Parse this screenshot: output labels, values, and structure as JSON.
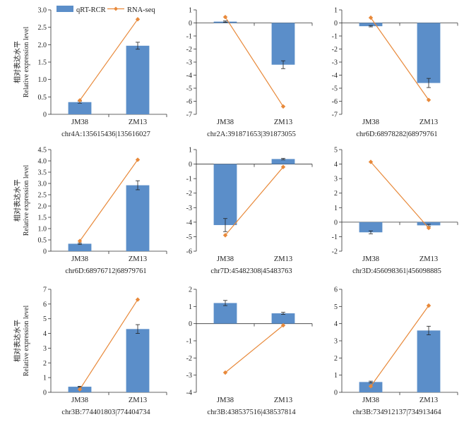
{
  "legend": {
    "bar_label": "qRT-RCR",
    "line_label": "RNA-seq"
  },
  "ylabel": {
    "cn": "相对表达水平",
    "en": "Relative expression level"
  },
  "colors": {
    "bar": "#5b8ec9",
    "line": "#e8893a",
    "marker": "#e8893a",
    "axis": "#333333"
  },
  "chart_data": [
    {
      "type": "bar",
      "title": "chr4A:135615436|135616027",
      "categories": [
        "JM38",
        "ZM13"
      ],
      "ylim": [
        0,
        3
      ],
      "yticks": [
        "0",
        "0.5",
        "1.0",
        "1.5",
        "2.0",
        "2.5",
        "3.0"
      ],
      "ytick_values": [
        0,
        0.5,
        1,
        1.5,
        2,
        2.5,
        3
      ],
      "series": [
        {
          "name": "qRT-RCR",
          "type": "bar",
          "values": [
            0.35,
            1.97
          ],
          "errors": [
            0.03,
            0.1
          ]
        },
        {
          "name": "RNA-seq",
          "type": "line",
          "values": [
            0.4,
            2.73
          ]
        }
      ]
    },
    {
      "type": "bar",
      "title": "chr2A:391871653|391873055",
      "categories": [
        "JM38",
        "ZM13"
      ],
      "ylim": [
        -7,
        1
      ],
      "yticks": [
        "1",
        "0",
        "-1",
        "-2",
        "-3",
        "-4",
        "-5",
        "-6",
        "-7"
      ],
      "ytick_values": [
        1,
        0,
        -1,
        -2,
        -3,
        -4,
        -5,
        -6,
        -7
      ],
      "series": [
        {
          "name": "qRT-RCR",
          "type": "bar",
          "values": [
            0.1,
            -3.2
          ],
          "errors": [
            0.05,
            0.3
          ]
        },
        {
          "name": "RNA-seq",
          "type": "line",
          "values": [
            0.45,
            -6.4
          ]
        }
      ]
    },
    {
      "type": "bar",
      "title": "chr6D:68978282|68979761",
      "categories": [
        "JM38",
        "ZM13"
      ],
      "ylim": [
        -7,
        1
      ],
      "yticks": [
        "1",
        "0",
        "-1",
        "-2",
        "-3",
        "-4",
        "-5",
        "-6",
        "-7"
      ],
      "ytick_values": [
        1,
        0,
        -1,
        -2,
        -3,
        -4,
        -5,
        -6,
        -7
      ],
      "series": [
        {
          "name": "qRT-RCR",
          "type": "bar",
          "values": [
            -0.25,
            -4.6
          ],
          "errors": [
            0.05,
            0.35
          ]
        },
        {
          "name": "RNA-seq",
          "type": "line",
          "values": [
            0.4,
            -5.9
          ]
        }
      ]
    },
    {
      "type": "bar",
      "title": "chr6D:68976712|68979761",
      "categories": [
        "JM38",
        "ZM13"
      ],
      "ylim": [
        0,
        4.5
      ],
      "yticks": [
        "0",
        "0.5",
        "1.0",
        "1.5",
        "2.0",
        "2.5",
        "3.0",
        "3.5",
        "4.0",
        "4.5"
      ],
      "ytick_values": [
        0,
        0.5,
        1,
        1.5,
        2,
        2.5,
        3,
        3.5,
        4,
        4.5
      ],
      "series": [
        {
          "name": "qRT-RCR",
          "type": "bar",
          "values": [
            0.33,
            2.92
          ],
          "errors": [
            0.03,
            0.2
          ]
        },
        {
          "name": "RNA-seq",
          "type": "line",
          "values": [
            0.45,
            4.05
          ]
        }
      ]
    },
    {
      "type": "bar",
      "title": "chr7D:45482308|45483763",
      "categories": [
        "JM38",
        "ZM13"
      ],
      "ylim": [
        -6,
        1
      ],
      "yticks": [
        "1",
        "0",
        "-1",
        "-2",
        "-3",
        "-4",
        "-5",
        "-6"
      ],
      "ytick_values": [
        1,
        0,
        -1,
        -2,
        -3,
        -4,
        -5,
        -6
      ],
      "series": [
        {
          "name": "qRT-RCR",
          "type": "bar",
          "values": [
            -4.2,
            0.35
          ],
          "errors": [
            0.45,
            0.05
          ]
        },
        {
          "name": "RNA-seq",
          "type": "line",
          "values": [
            -4.9,
            -0.2
          ]
        }
      ]
    },
    {
      "type": "bar",
      "title": "chr3D:456098361|456098885",
      "categories": [
        "JM38",
        "ZM13"
      ],
      "ylim": [
        -2,
        5
      ],
      "yticks": [
        "5",
        "4",
        "3",
        "2",
        "1",
        "0",
        "-1",
        "-2"
      ],
      "ytick_values": [
        5,
        4,
        3,
        2,
        1,
        0,
        -1,
        -2
      ],
      "series": [
        {
          "name": "qRT-RCR",
          "type": "bar",
          "values": [
            -0.7,
            -0.22
          ],
          "errors": [
            0.1,
            0.07
          ]
        },
        {
          "name": "RNA-seq",
          "type": "line",
          "values": [
            4.15,
            -0.4
          ]
        }
      ]
    },
    {
      "type": "bar",
      "title": "chr3B:774401803|774404734",
      "categories": [
        "JM38",
        "ZM13"
      ],
      "ylim": [
        0,
        7
      ],
      "yticks": [
        "0",
        "1",
        "2",
        "3",
        "4",
        "5",
        "6",
        "7"
      ],
      "ytick_values": [
        0,
        1,
        2,
        3,
        4,
        5,
        6,
        7
      ],
      "series": [
        {
          "name": "qRT-RCR",
          "type": "bar",
          "values": [
            0.38,
            4.3
          ],
          "errors": [
            0.03,
            0.3
          ]
        },
        {
          "name": "RNA-seq",
          "type": "line",
          "values": [
            0.2,
            6.3
          ]
        }
      ]
    },
    {
      "type": "bar",
      "title": "chr3B:438537516|438537814",
      "categories": [
        "JM38",
        "ZM13"
      ],
      "ylim": [
        -4,
        2
      ],
      "yticks": [
        "2",
        "1",
        "0",
        "-1",
        "-2",
        "-3",
        "-4"
      ],
      "ytick_values": [
        2,
        1,
        0,
        -1,
        -2,
        -3,
        -4
      ],
      "series": [
        {
          "name": "qRT-RCR",
          "type": "bar",
          "values": [
            1.2,
            0.6
          ],
          "errors": [
            0.15,
            0.06
          ]
        },
        {
          "name": "RNA-seq",
          "type": "line",
          "values": [
            -2.85,
            -0.1
          ]
        }
      ]
    },
    {
      "type": "bar",
      "title": "chr3B:734912137|734913464",
      "categories": [
        "JM38",
        "ZM13"
      ],
      "ylim": [
        0,
        6
      ],
      "yticks": [
        "0",
        "1",
        "2",
        "3",
        "4",
        "5",
        "6"
      ],
      "ytick_values": [
        0,
        1,
        2,
        3,
        4,
        5,
        6
      ],
      "series": [
        {
          "name": "qRT-RCR",
          "type": "bar",
          "values": [
            0.6,
            3.6
          ],
          "errors": [
            0.05,
            0.25
          ]
        },
        {
          "name": "RNA-seq",
          "type": "line",
          "values": [
            0.35,
            5.05
          ]
        }
      ]
    }
  ]
}
